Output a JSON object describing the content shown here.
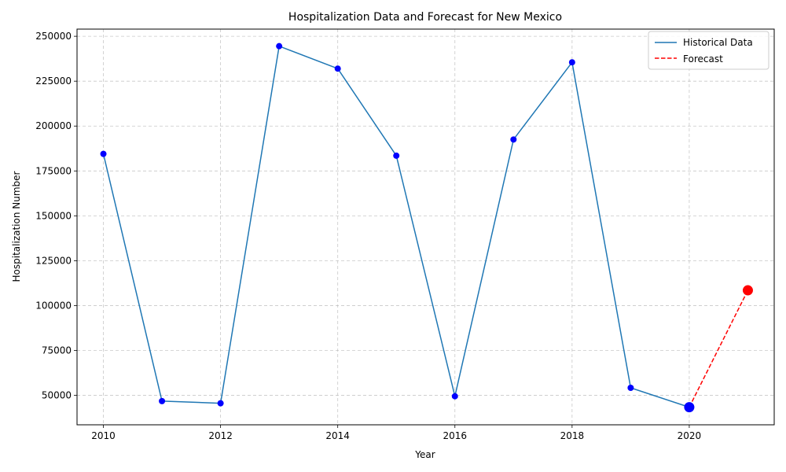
{
  "chart_data": {
    "type": "line",
    "title": "Hospitalization Data and Forecast for New Mexico",
    "xlabel": "Year",
    "ylabel": "Hospitalization Number",
    "xlim": [
      2009.55,
      2021.45
    ],
    "ylim": [
      33600,
      254000
    ],
    "x_ticks": [
      2010,
      2012,
      2014,
      2016,
      2018,
      2020
    ],
    "y_ticks": [
      50000,
      75000,
      100000,
      125000,
      150000,
      175000,
      200000,
      225000,
      250000
    ],
    "grid": true,
    "legend_position": "top-right",
    "series": [
      {
        "name": "Historical Data",
        "style": "solid",
        "color": "#1f77b4",
        "marker_color": "#0000ff",
        "x": [
          2010,
          2011,
          2012,
          2013,
          2014,
          2015,
          2016,
          2017,
          2018,
          2019,
          2020
        ],
        "y": [
          184500,
          46800,
          45600,
          244500,
          232000,
          183500,
          49500,
          192500,
          235500,
          54200,
          43400
        ]
      },
      {
        "name": "Forecast",
        "style": "dashed",
        "color": "#ff0000",
        "x": [
          2020,
          2021
        ],
        "y": [
          43400,
          108500
        ]
      }
    ],
    "highlight_points": [
      {
        "x": 2020,
        "y": 43400,
        "color": "#0000ff"
      },
      {
        "x": 2021,
        "y": 108500,
        "color": "#ff0000"
      }
    ]
  }
}
